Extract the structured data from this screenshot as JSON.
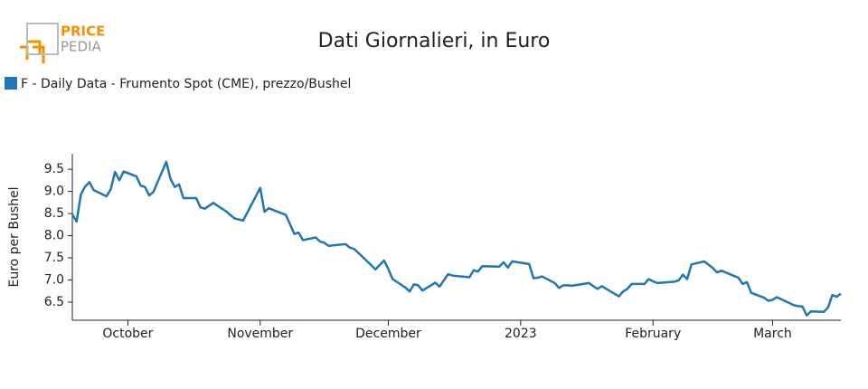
{
  "logo": {
    "top": "PRICE",
    "bottom": "PEDIA"
  },
  "chart_data": {
    "type": "line",
    "title": "Dati Giornalieri, in Euro",
    "ylabel": "Euro per Bushel",
    "legend": "top-left",
    "x": [
      "2022-09-18",
      "2022-09-19",
      "2022-09-20",
      "2022-09-21",
      "2022-09-22",
      "2022-09-23",
      "2022-09-26",
      "2022-09-27",
      "2022-09-28",
      "2022-09-29",
      "2022-09-30",
      "2022-10-03",
      "2022-10-04",
      "2022-10-05",
      "2022-10-06",
      "2022-10-07",
      "2022-10-10",
      "2022-10-11",
      "2022-10-12",
      "2022-10-13",
      "2022-10-14",
      "2022-10-17",
      "2022-10-18",
      "2022-10-19",
      "2022-10-21",
      "2022-10-24",
      "2022-10-26",
      "2022-10-28",
      "2022-11-01",
      "2022-11-02",
      "2022-11-03",
      "2022-11-07",
      "2022-11-09",
      "2022-11-10",
      "2022-11-11",
      "2022-11-14",
      "2022-11-15",
      "2022-11-16",
      "2022-11-17",
      "2022-11-21",
      "2022-11-22",
      "2022-11-23",
      "2022-11-25",
      "2022-11-28",
      "2022-11-30",
      "2022-12-01",
      "2022-12-02",
      "2022-12-05",
      "2022-12-06",
      "2022-12-07",
      "2022-12-08",
      "2022-12-09",
      "2022-12-12",
      "2022-12-13",
      "2022-12-15",
      "2022-12-16",
      "2022-12-19",
      "2022-12-20",
      "2022-12-21",
      "2022-12-22",
      "2022-12-23",
      "2022-12-27",
      "2022-12-28",
      "2022-12-29",
      "2022-12-30",
      "2023-01-03",
      "2023-01-04",
      "2023-01-05",
      "2023-01-06",
      "2023-01-09",
      "2023-01-10",
      "2023-01-11",
      "2023-01-12",
      "2023-01-13",
      "2023-01-17",
      "2023-01-18",
      "2023-01-19",
      "2023-01-20",
      "2023-01-24",
      "2023-01-25",
      "2023-01-26",
      "2023-01-27",
      "2023-01-30",
      "2023-01-31",
      "2023-02-01",
      "2023-02-02",
      "2023-02-06",
      "2023-02-07",
      "2023-02-08",
      "2023-02-09",
      "2023-02-10",
      "2023-02-13",
      "2023-02-15",
      "2023-02-16",
      "2023-02-17",
      "2023-02-21",
      "2023-02-22",
      "2023-02-23",
      "2023-02-24",
      "2023-02-27",
      "2023-02-28",
      "2023-03-01",
      "2023-03-02",
      "2023-03-06",
      "2023-03-07",
      "2023-03-08",
      "2023-03-09",
      "2023-03-10",
      "2023-03-13",
      "2023-03-14",
      "2023-03-15",
      "2023-03-16",
      "2023-03-17"
    ],
    "series": [
      {
        "name": "F - Daily Data - Frumento Spot (CME), prezzo/Bushel",
        "color": "#1f77b4",
        "values": [
          8.48,
          8.32,
          8.93,
          9.11,
          9.21,
          9.03,
          8.89,
          9.05,
          9.44,
          9.25,
          9.45,
          9.34,
          9.13,
          9.1,
          8.91,
          8.99,
          9.67,
          9.28,
          9.1,
          9.16,
          8.85,
          8.85,
          8.64,
          8.61,
          8.74,
          8.55,
          8.39,
          8.34,
          9.08,
          8.54,
          8.62,
          8.47,
          8.04,
          8.07,
          7.9,
          7.96,
          7.87,
          7.84,
          7.77,
          7.81,
          7.73,
          7.7,
          7.52,
          7.24,
          7.44,
          7.25,
          7.02,
          6.83,
          6.74,
          6.9,
          6.88,
          6.76,
          6.94,
          6.85,
          7.13,
          7.1,
          7.07,
          7.06,
          7.22,
          7.19,
          7.31,
          7.3,
          7.4,
          7.28,
          7.42,
          7.36,
          7.04,
          7.05,
          7.08,
          6.93,
          6.82,
          6.88,
          6.88,
          6.87,
          6.93,
          6.86,
          6.8,
          6.86,
          6.63,
          6.74,
          6.8,
          6.91,
          6.91,
          7.02,
          6.97,
          6.93,
          6.96,
          6.99,
          7.12,
          7.02,
          7.35,
          7.42,
          7.27,
          7.17,
          7.21,
          7.05,
          6.91,
          6.95,
          6.71,
          6.6,
          6.53,
          6.55,
          6.61,
          6.43,
          6.41,
          6.4,
          6.2,
          6.29,
          6.28,
          6.38,
          6.66,
          6.62,
          6.69
        ]
      }
    ],
    "xlim": [
      "2022-09-18",
      "2023-03-17"
    ],
    "xticks": [
      {
        "value": "2022-10-01",
        "label": "October"
      },
      {
        "value": "2022-11-01",
        "label": "November"
      },
      {
        "value": "2022-12-01",
        "label": "December"
      },
      {
        "value": "2023-01-01",
        "label": "2023"
      },
      {
        "value": "2023-02-01",
        "label": "February"
      },
      {
        "value": "2023-03-01",
        "label": "March"
      }
    ],
    "ylim": [
      6.09,
      9.85
    ],
    "yticks": [
      6.5,
      {
        "value": 7,
        "label": "7.0"
      },
      7.5,
      {
        "value": 8,
        "label": "8.0"
      },
      8.5,
      {
        "value": 9,
        "label": "9.0"
      },
      9.5
    ]
  }
}
